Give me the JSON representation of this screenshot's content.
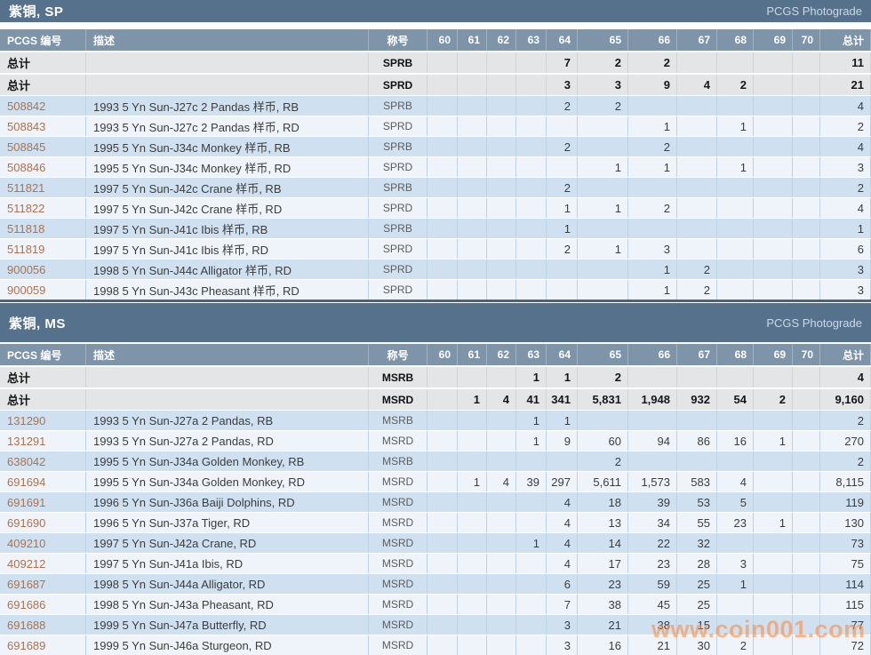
{
  "page": {
    "photograde_label": "PCGS Photograde",
    "watermark": "www.coin001.com"
  },
  "headers": {
    "pcgs_number": "PCGS 编号",
    "description": "描述",
    "designation": "称号",
    "total": "总计",
    "total_row_label": "总计"
  },
  "grade_columns": [
    "60",
    "61",
    "62",
    "63",
    "64",
    "65",
    "66",
    "67",
    "68",
    "69",
    "70"
  ],
  "colors": {
    "section_bar": "#56718c",
    "column_header": "#7d94a9",
    "total_row_bg": "#e4e5e6",
    "row_blue": "#cfe1f0",
    "row_light": "#eef4f9",
    "id_link": "#ab7250",
    "watermark_orange": "#ff8a3c"
  },
  "tables": [
    {
      "title": "紫铜, SP",
      "rows": [
        {
          "is_total": true,
          "id": "总计",
          "desc": "",
          "desig": "SPRB",
          "counts": [
            "",
            "",
            "",
            "",
            "7",
            "2",
            "2",
            "",
            "",
            "",
            ""
          ],
          "total": "11"
        },
        {
          "is_total": true,
          "id": "总计",
          "desc": "",
          "desig": "SPRD",
          "counts": [
            "",
            "",
            "",
            "",
            "3",
            "3",
            "9",
            "4",
            "2",
            "",
            ""
          ],
          "total": "21"
        },
        {
          "id": "508842",
          "desc": "1993 5 Yn Sun-J27c 2 Pandas 样币, RB",
          "desig": "SPRB",
          "counts": [
            "",
            "",
            "",
            "",
            "2",
            "2",
            "",
            "",
            "",
            "",
            ""
          ],
          "total": "4"
        },
        {
          "id": "508843",
          "desc": "1993 5 Yn Sun-J27c 2 Pandas 样币, RD",
          "desig": "SPRD",
          "counts": [
            "",
            "",
            "",
            "",
            "",
            "",
            "1",
            "",
            "1",
            "",
            ""
          ],
          "total": "2"
        },
        {
          "id": "508845",
          "desc": "1995 5 Yn Sun-J34c Monkey 样币, RB",
          "desig": "SPRB",
          "counts": [
            "",
            "",
            "",
            "",
            "2",
            "",
            "2",
            "",
            "",
            "",
            ""
          ],
          "total": "4"
        },
        {
          "id": "508846",
          "desc": "1995 5 Yn Sun-J34c Monkey 样币, RD",
          "desig": "SPRD",
          "counts": [
            "",
            "",
            "",
            "",
            "",
            "1",
            "1",
            "",
            "1",
            "",
            ""
          ],
          "total": "3"
        },
        {
          "id": "511821",
          "desc": "1997 5 Yn Sun-J42c Crane 样币, RB",
          "desig": "SPRB",
          "counts": [
            "",
            "",
            "",
            "",
            "2",
            "",
            "",
            "",
            "",
            "",
            ""
          ],
          "total": "2"
        },
        {
          "id": "511822",
          "desc": "1997 5 Yn Sun-J42c Crane 样币, RD",
          "desig": "SPRD",
          "counts": [
            "",
            "",
            "",
            "",
            "1",
            "1",
            "2",
            "",
            "",
            "",
            ""
          ],
          "total": "4"
        },
        {
          "id": "511818",
          "desc": "1997 5 Yn Sun-J41c Ibis 样币, RB",
          "desig": "SPRB",
          "counts": [
            "",
            "",
            "",
            "",
            "1",
            "",
            "",
            "",
            "",
            "",
            ""
          ],
          "total": "1"
        },
        {
          "id": "511819",
          "desc": "1997 5 Yn Sun-J41c Ibis 样币, RD",
          "desig": "SPRD",
          "counts": [
            "",
            "",
            "",
            "",
            "2",
            "1",
            "3",
            "",
            "",
            "",
            ""
          ],
          "total": "6"
        },
        {
          "id": "900056",
          "desc": "1998 5 Yn Sun-J44c Alligator 样币, RD",
          "desig": "SPRD",
          "counts": [
            "",
            "",
            "",
            "",
            "",
            "",
            "1",
            "2",
            "",
            "",
            ""
          ],
          "total": "3"
        },
        {
          "id": "900059",
          "desc": "1998 5 Yn Sun-J43c Pheasant 样币, RD",
          "desig": "SPRD",
          "counts": [
            "",
            "",
            "",
            "",
            "",
            "",
            "1",
            "2",
            "",
            "",
            ""
          ],
          "total": "3"
        }
      ]
    },
    {
      "title": "紫铜, MS",
      "rows": [
        {
          "is_total": true,
          "id": "总计",
          "desc": "",
          "desig": "MSRB",
          "counts": [
            "",
            "",
            "",
            "1",
            "1",
            "2",
            "",
            "",
            "",
            "",
            ""
          ],
          "total": "4"
        },
        {
          "is_total": true,
          "id": "总计",
          "desc": "",
          "desig": "MSRD",
          "counts": [
            "",
            "1",
            "4",
            "41",
            "341",
            "5,831",
            "1,948",
            "932",
            "54",
            "2",
            ""
          ],
          "total": "9,160"
        },
        {
          "id": "131290",
          "desc": "1993 5 Yn Sun-J27a 2 Pandas, RB",
          "desig": "MSRB",
          "counts": [
            "",
            "",
            "",
            "1",
            "1",
            "",
            "",
            "",
            "",
            "",
            ""
          ],
          "total": "2"
        },
        {
          "id": "131291",
          "desc": "1993 5 Yn Sun-J27a 2 Pandas, RD",
          "desig": "MSRD",
          "counts": [
            "",
            "",
            "",
            "1",
            "9",
            "60",
            "94",
            "86",
            "16",
            "1",
            ""
          ],
          "total": "270"
        },
        {
          "id": "638042",
          "desc": "1995 5 Yn Sun-J34a Golden Monkey, RB",
          "desig": "MSRB",
          "counts": [
            "",
            "",
            "",
            "",
            "",
            "2",
            "",
            "",
            "",
            "",
            ""
          ],
          "total": "2"
        },
        {
          "id": "691694",
          "desc": "1995 5 Yn Sun-J34a Golden Monkey, RD",
          "desig": "MSRD",
          "counts": [
            "",
            "1",
            "4",
            "39",
            "297",
            "5,611",
            "1,573",
            "583",
            "4",
            "",
            ""
          ],
          "total": "8,115"
        },
        {
          "id": "691691",
          "desc": "1996 5 Yn Sun-J36a Baiji Dolphins, RD",
          "desig": "MSRD",
          "counts": [
            "",
            "",
            "",
            "",
            "4",
            "18",
            "39",
            "53",
            "5",
            "",
            ""
          ],
          "total": "119"
        },
        {
          "id": "691690",
          "desc": "1996 5 Yn Sun-J37a Tiger, RD",
          "desig": "MSRD",
          "counts": [
            "",
            "",
            "",
            "",
            "4",
            "13",
            "34",
            "55",
            "23",
            "1",
            ""
          ],
          "total": "130"
        },
        {
          "id": "409210",
          "desc": "1997 5 Yn Sun-J42a Crane, RD",
          "desig": "MSRD",
          "counts": [
            "",
            "",
            "",
            "1",
            "4",
            "14",
            "22",
            "32",
            "",
            "",
            ""
          ],
          "total": "73"
        },
        {
          "id": "409212",
          "desc": "1997 5 Yn Sun-J41a Ibis, RD",
          "desig": "MSRD",
          "counts": [
            "",
            "",
            "",
            "",
            "4",
            "17",
            "23",
            "28",
            "3",
            "",
            ""
          ],
          "total": "75"
        },
        {
          "id": "691687",
          "desc": "1998 5 Yn Sun-J44a Alligator, RD",
          "desig": "MSRD",
          "counts": [
            "",
            "",
            "",
            "",
            "6",
            "23",
            "59",
            "25",
            "1",
            "",
            ""
          ],
          "total": "114"
        },
        {
          "id": "691686",
          "desc": "1998 5 Yn Sun-J43a Pheasant, RD",
          "desig": "MSRD",
          "counts": [
            "",
            "",
            "",
            "",
            "7",
            "38",
            "45",
            "25",
            "",
            "",
            ""
          ],
          "total": "115"
        },
        {
          "id": "691688",
          "desc": "1999 5 Yn Sun-J47a Butterfly, RD",
          "desig": "MSRD",
          "counts": [
            "",
            "",
            "",
            "",
            "3",
            "21",
            "38",
            "15",
            "",
            "",
            ""
          ],
          "total": "77"
        },
        {
          "id": "691689",
          "desc": "1999 5 Yn Sun-J46a Sturgeon, RD",
          "desig": "MSRD",
          "counts": [
            "",
            "",
            "",
            "",
            "3",
            "16",
            "21",
            "30",
            "2",
            "",
            ""
          ],
          "total": "72"
        }
      ]
    }
  ]
}
